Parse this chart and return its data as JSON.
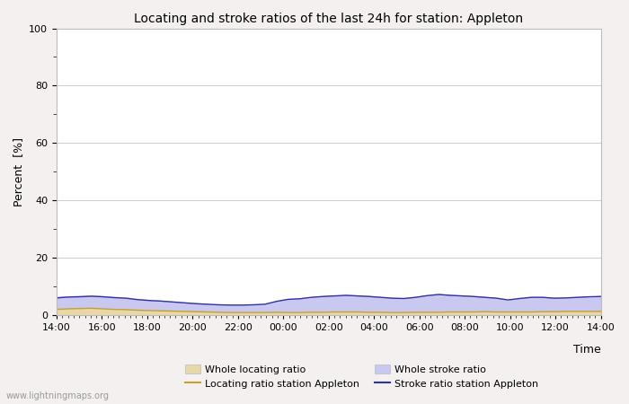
{
  "title": "Locating and stroke ratios of the last 24h for station: Appleton",
  "xlabel": "Time",
  "ylabel": "Percent  [%]",
  "xlim": [
    0,
    24
  ],
  "ylim": [
    0,
    100
  ],
  "yticks": [
    0,
    20,
    40,
    60,
    80,
    100
  ],
  "xtick_labels": [
    "14:00",
    "16:00",
    "18:00",
    "20:00",
    "22:00",
    "00:00",
    "02:00",
    "04:00",
    "06:00",
    "08:00",
    "10:00",
    "12:00",
    "14:00"
  ],
  "background_color": "#f5f0f0",
  "plot_bg_color": "#ffffff",
  "grid_color": "#cccccc",
  "watermark": "www.lightningmaps.org",
  "whole_locating_fill_color": "#e8d8a8",
  "whole_stroke_fill_color": "#c8c8f0",
  "locating_line_color": "#c8a030",
  "stroke_line_color": "#3030a0",
  "whole_locating": [
    2.1,
    2.3,
    2.4,
    2.5,
    2.3,
    2.1,
    2.0,
    1.8,
    1.7,
    1.6,
    1.5,
    1.4,
    1.3,
    1.2,
    1.1,
    1.0,
    0.9,
    0.9,
    0.9,
    1.0,
    0.9,
    0.9,
    1.0,
    1.0,
    1.1,
    1.2,
    1.1,
    1.0,
    1.0,
    0.9,
    0.9,
    1.0,
    1.0,
    1.1,
    1.2,
    1.1,
    1.2,
    1.2,
    1.2,
    1.1,
    1.2,
    1.2,
    1.2,
    1.3,
    1.3,
    1.4,
    1.3,
    1.3
  ],
  "whole_stroke": [
    6.5,
    6.8,
    6.9,
    7.0,
    6.8,
    6.5,
    6.3,
    5.8,
    5.5,
    5.2,
    4.9,
    4.6,
    4.3,
    4.0,
    3.8,
    3.7,
    3.6,
    3.7,
    3.9,
    5.0,
    5.8,
    6.0,
    6.5,
    6.8,
    7.0,
    7.2,
    7.0,
    6.8,
    6.5,
    6.2,
    6.0,
    6.5,
    7.0,
    7.5,
    7.2,
    7.0,
    6.8,
    6.5,
    6.2,
    5.5,
    6.0,
    6.5,
    6.5,
    6.2,
    6.3,
    6.5,
    6.7,
    6.8
  ],
  "locating_station": [
    2.0,
    2.2,
    2.3,
    2.4,
    2.2,
    2.0,
    1.9,
    1.7,
    1.6,
    1.5,
    1.4,
    1.3,
    1.2,
    1.1,
    1.0,
    0.9,
    0.9,
    0.9,
    0.9,
    1.0,
    0.9,
    0.9,
    1.0,
    1.0,
    1.1,
    1.1,
    1.1,
    1.0,
    1.0,
    0.9,
    0.9,
    1.0,
    1.0,
    1.0,
    1.1,
    1.1,
    1.1,
    1.2,
    1.1,
    1.1,
    1.1,
    1.1,
    1.2,
    1.2,
    1.3,
    1.3,
    1.3,
    1.3
  ],
  "stroke_station": [
    6.0,
    6.3,
    6.4,
    6.6,
    6.4,
    6.1,
    5.9,
    5.4,
    5.1,
    4.9,
    4.6,
    4.3,
    4.0,
    3.8,
    3.6,
    3.5,
    3.5,
    3.6,
    3.8,
    4.8,
    5.5,
    5.7,
    6.2,
    6.5,
    6.7,
    6.9,
    6.7,
    6.5,
    6.2,
    5.9,
    5.8,
    6.2,
    6.8,
    7.2,
    6.9,
    6.7,
    6.5,
    6.2,
    5.9,
    5.3,
    5.8,
    6.2,
    6.2,
    5.9,
    6.0,
    6.2,
    6.4,
    6.5
  ]
}
